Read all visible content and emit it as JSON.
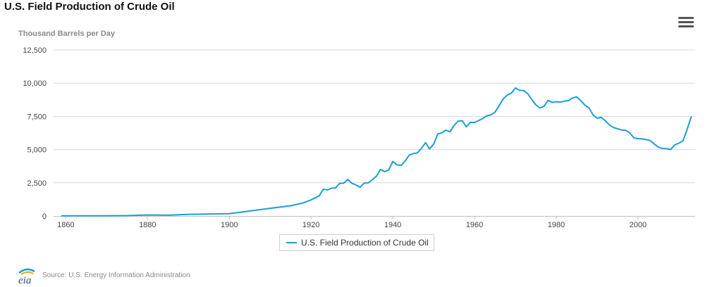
{
  "title": "U.S. Field Production of Crude Oil",
  "source": "Source: U.S. Energy Information Administration",
  "logo_text": "eia",
  "menu_icon": "hamburger-menu-icon",
  "colors": {
    "series": "#1a9fd4",
    "grid": "#d8d8d8",
    "axis": "#c0c0c0"
  },
  "chart_data": {
    "type": "line",
    "title": "U.S. Field Production of Crude Oil",
    "ylabel": "Thousand Barrels per Day",
    "xlabel": "",
    "xlim": [
      1857,
      2014
    ],
    "ylim": [
      0,
      12500
    ],
    "x_ticks": [
      1860,
      1880,
      1900,
      1920,
      1940,
      1960,
      1980,
      2000
    ],
    "y_ticks": [
      0,
      2500,
      5000,
      7500,
      10000,
      12500
    ],
    "y_tick_labels": [
      "0",
      "2,500",
      "5,000",
      "7,500",
      "10,000",
      "12,500"
    ],
    "grid": true,
    "legend": "bottom-center",
    "series": [
      {
        "name": "U.S. Field Production of Crude Oil",
        "x": [
          1859,
          1865,
          1870,
          1875,
          1880,
          1885,
          1890,
          1895,
          1900,
          1905,
          1910,
          1915,
          1918,
          1920,
          1922,
          1923,
          1924,
          1925,
          1926,
          1927,
          1928,
          1929,
          1930,
          1931,
          1932,
          1933,
          1934,
          1935,
          1936,
          1937,
          1938,
          1939,
          1940,
          1941,
          1942,
          1943,
          1944,
          1945,
          1946,
          1947,
          1948,
          1949,
          1950,
          1951,
          1952,
          1953,
          1954,
          1955,
          1956,
          1957,
          1958,
          1959,
          1960,
          1961,
          1962,
          1963,
          1964,
          1965,
          1966,
          1967,
          1968,
          1969,
          1970,
          1971,
          1972,
          1973,
          1974,
          1975,
          1976,
          1977,
          1978,
          1979,
          1980,
          1981,
          1982,
          1983,
          1984,
          1985,
          1986,
          1987,
          1988,
          1989,
          1990,
          1991,
          1992,
          1993,
          1994,
          1995,
          1996,
          1997,
          1998,
          1999,
          2000,
          2001,
          2002,
          2003,
          2004,
          2005,
          2006,
          2007,
          2008,
          2009,
          2010,
          2011,
          2012,
          2013
        ],
        "values": [
          5,
          10,
          15,
          25,
          75,
          60,
          120,
          145,
          175,
          370,
          575,
          770,
          975,
          1210,
          1520,
          2010,
          1960,
          2090,
          2120,
          2450,
          2470,
          2750,
          2460,
          2330,
          2160,
          2480,
          2490,
          2730,
          3000,
          3500,
          3330,
          3460,
          4110,
          3850,
          3800,
          4120,
          4580,
          4690,
          4750,
          5090,
          5520,
          5050,
          5410,
          6160,
          6260,
          6460,
          6340,
          6810,
          7150,
          7170,
          6710,
          7050,
          7040,
          7180,
          7330,
          7540,
          7610,
          7800,
          8300,
          8810,
          9100,
          9240,
          9640,
          9460,
          9440,
          9210,
          8770,
          8370,
          8130,
          8250,
          8710,
          8550,
          8600,
          8570,
          8650,
          8690,
          8880,
          8970,
          8680,
          8350,
          8140,
          7610,
          7360,
          7420,
          7170,
          6850,
          6660,
          6560,
          6470,
          6450,
          6250,
          5880,
          5820,
          5800,
          5750,
          5680,
          5420,
          5180,
          5080,
          5070,
          5000,
          5350,
          5480,
          5650,
          6500,
          7450
        ]
      }
    ]
  }
}
